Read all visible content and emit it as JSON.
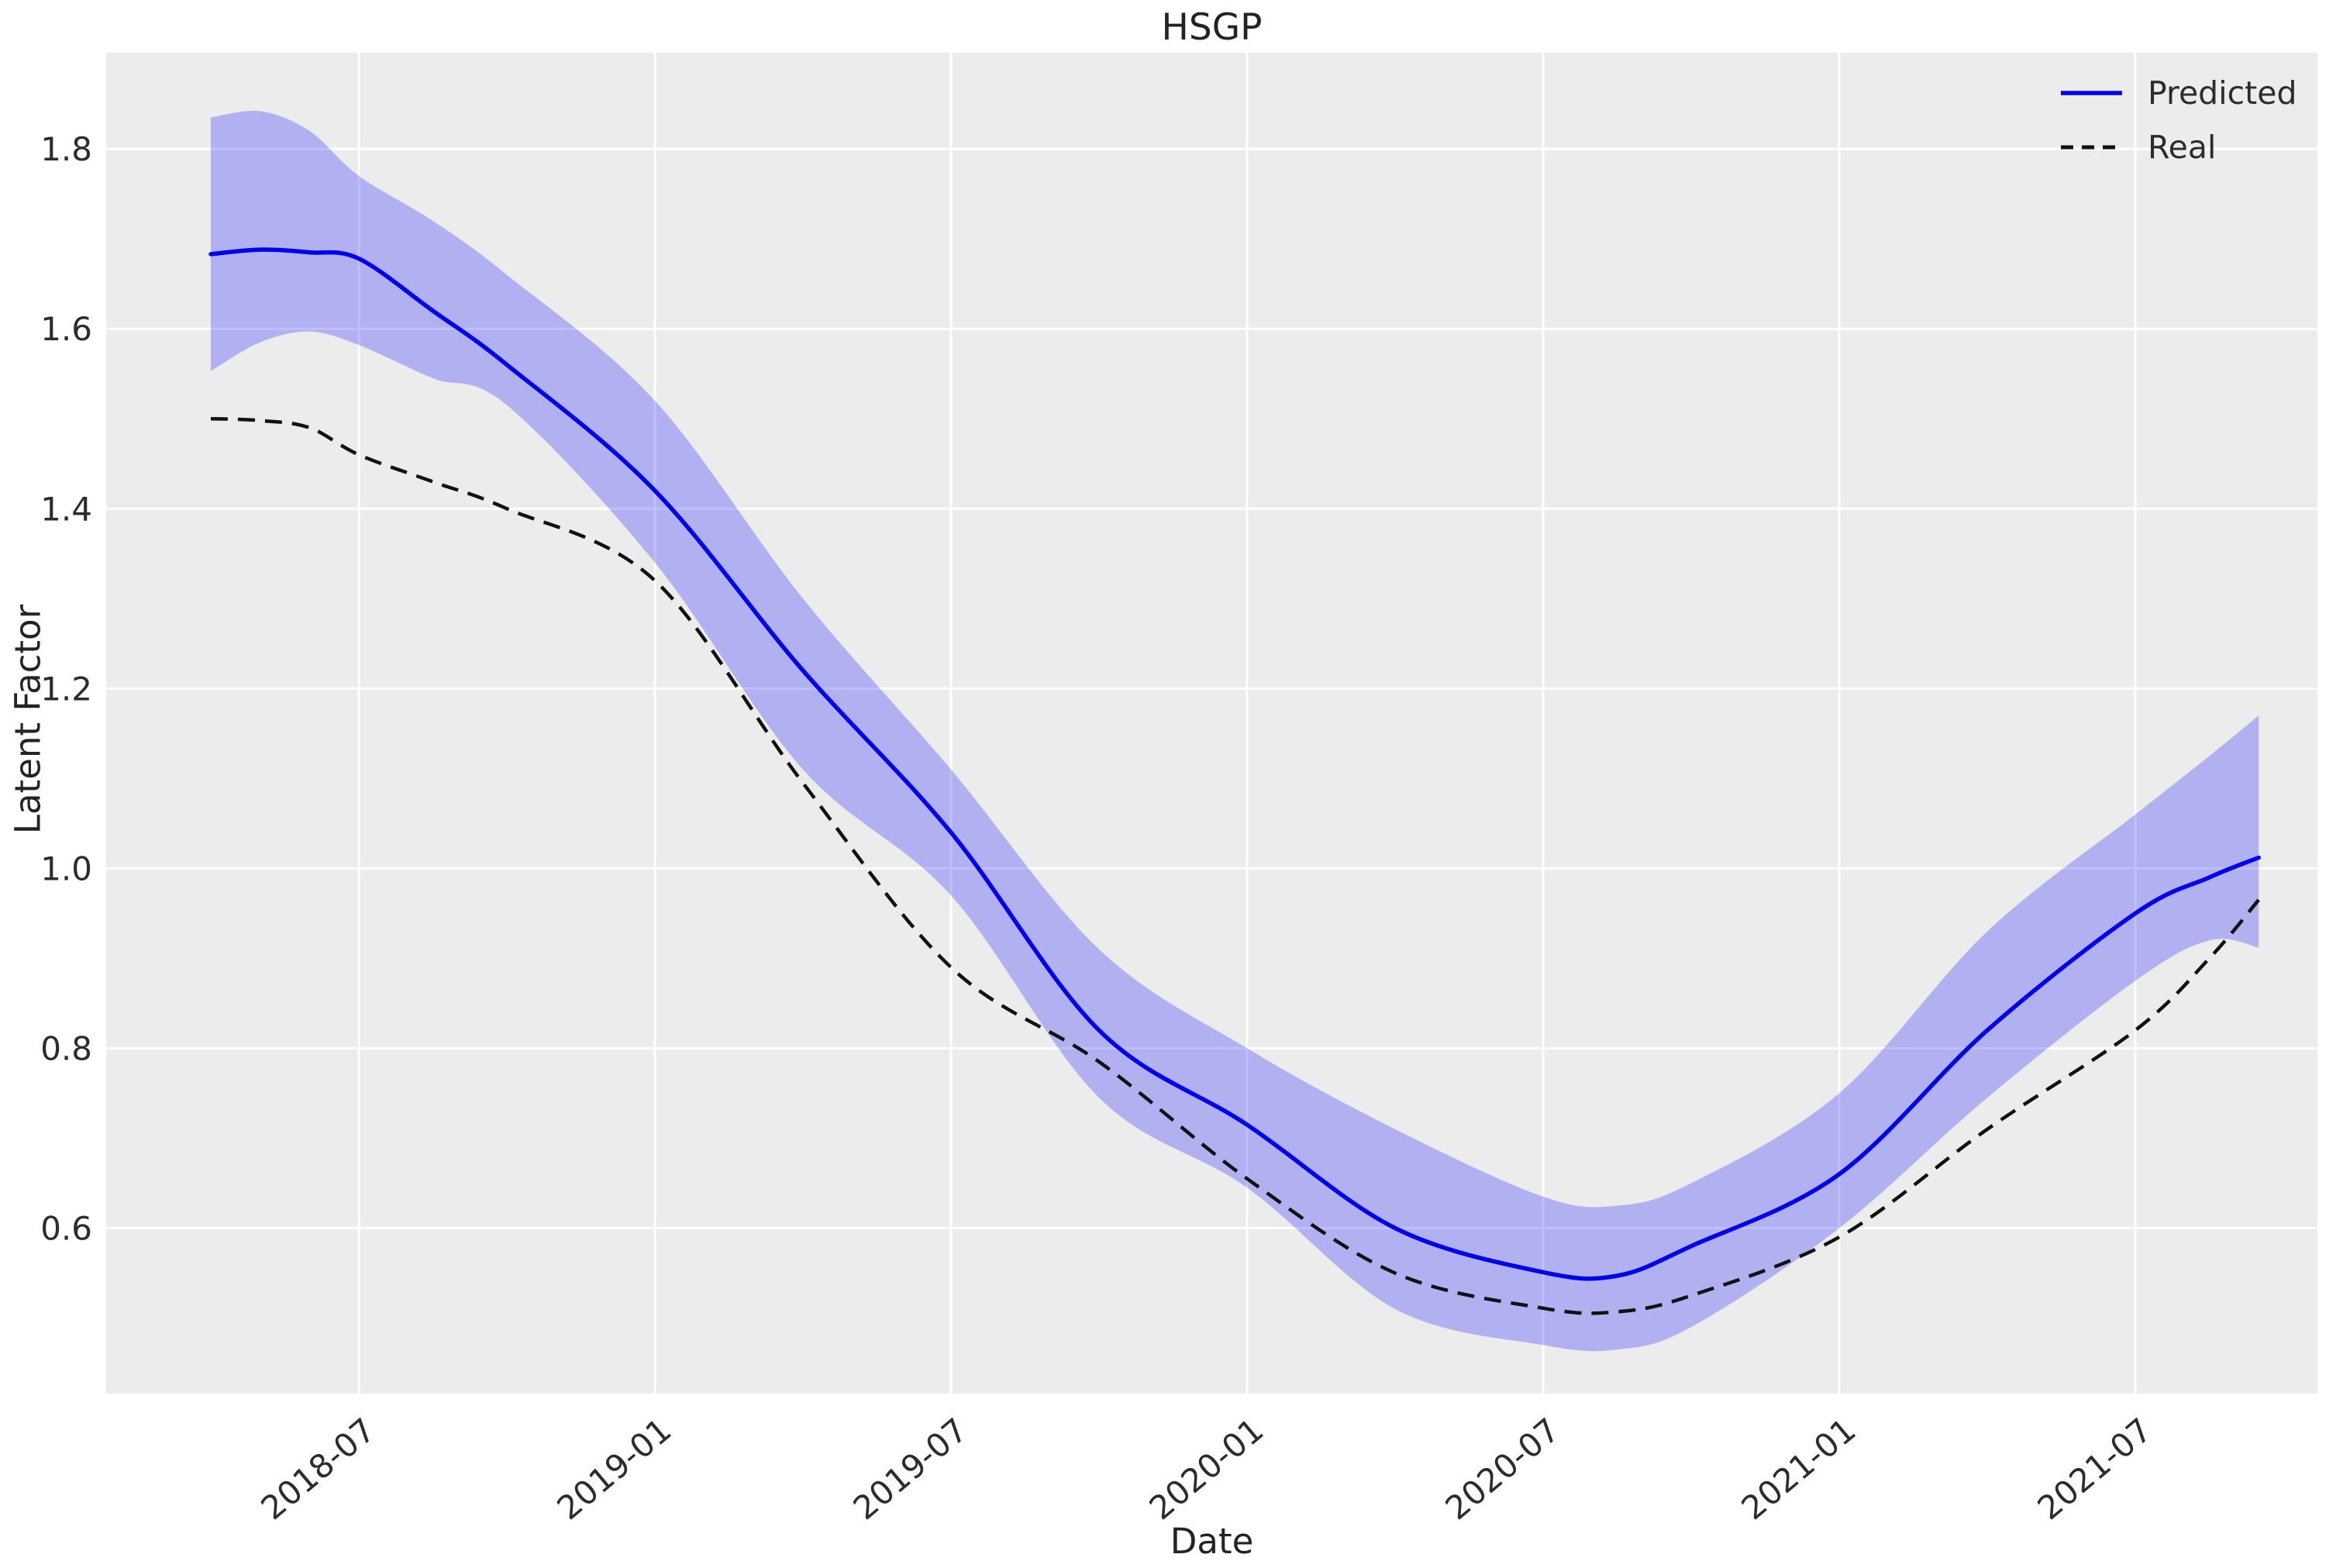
{
  "chart_data": {
    "type": "line",
    "title": "HSGP",
    "xlabel": "Date",
    "ylabel": "Latent Factor",
    "grid": true,
    "legend_position": "upper right",
    "colors": {
      "axes_background": "#ececec",
      "gridline": "#ffffff",
      "predicted_line": "#0000ee",
      "band_fill": "#0000ff",
      "band_opacity": 0.25,
      "real_line": "#111111",
      "text": "#2c2c2c"
    },
    "x_axis": {
      "label": "Date",
      "unit_note": "t = months after 2018-04",
      "tick_t": [
        3,
        9,
        15,
        21,
        27,
        33,
        39
      ],
      "tick_labels": [
        "2018-07",
        "2019-01",
        "2019-07",
        "2020-01",
        "2020-07",
        "2021-01",
        "2021-07"
      ],
      "lim_t": [
        -2.12,
        42.69
      ],
      "data_start_t": 0,
      "data_end_t": 41.5
    },
    "y_axis": {
      "label": "Latent Factor",
      "ticks": [
        0.6,
        0.8,
        1.0,
        1.2,
        1.4,
        1.6,
        1.8
      ],
      "tick_labels": [
        "0.6",
        "0.8",
        "1.0",
        "1.2",
        "1.4",
        "1.6",
        "1.8"
      ],
      "lim": [
        0.416,
        1.907
      ]
    },
    "t": [
      0,
      1,
      2,
      3,
      4.5,
      6,
      9,
      12,
      15,
      18,
      21,
      24,
      27,
      28.5,
      30,
      33,
      36,
      39,
      40.5,
      41.5
    ],
    "series": [
      {
        "name": "Predicted",
        "style": "solid",
        "color": "#0000ee",
        "values": [
          1.683,
          1.688,
          1.685,
          1.678,
          1.62,
          1.56,
          1.42,
          1.22,
          1.04,
          0.82,
          0.715,
          0.6,
          0.551,
          0.547,
          0.58,
          0.66,
          0.82,
          0.95,
          0.99,
          1.012
        ]
      },
      {
        "name": "Real",
        "style": "dashed",
        "color": "#111111",
        "values": [
          1.5,
          1.498,
          1.49,
          1.46,
          1.43,
          1.4,
          1.32,
          1.095,
          0.89,
          0.785,
          0.655,
          0.55,
          0.511,
          0.507,
          0.525,
          0.59,
          0.71,
          0.82,
          0.9,
          0.965
        ]
      }
    ],
    "band": {
      "name": "predicted-uncertainty-band",
      "upper": [
        1.835,
        1.842,
        1.82,
        1.77,
        1.72,
        1.66,
        1.52,
        1.3,
        1.11,
        0.91,
        0.8,
        0.71,
        0.635,
        0.625,
        0.65,
        0.75,
        0.93,
        1.06,
        1.125,
        1.17
      ],
      "lower": [
        1.553,
        1.585,
        1.597,
        1.582,
        1.545,
        1.515,
        1.34,
        1.11,
        0.97,
        0.745,
        0.645,
        0.51,
        0.47,
        0.465,
        0.49,
        0.6,
        0.745,
        0.875,
        0.92,
        0.912
      ]
    },
    "legend": [
      {
        "label": "Predicted",
        "style": "solid",
        "color": "#0000ee"
      },
      {
        "label": "Real",
        "style": "dashed",
        "color": "#111111"
      }
    ]
  }
}
